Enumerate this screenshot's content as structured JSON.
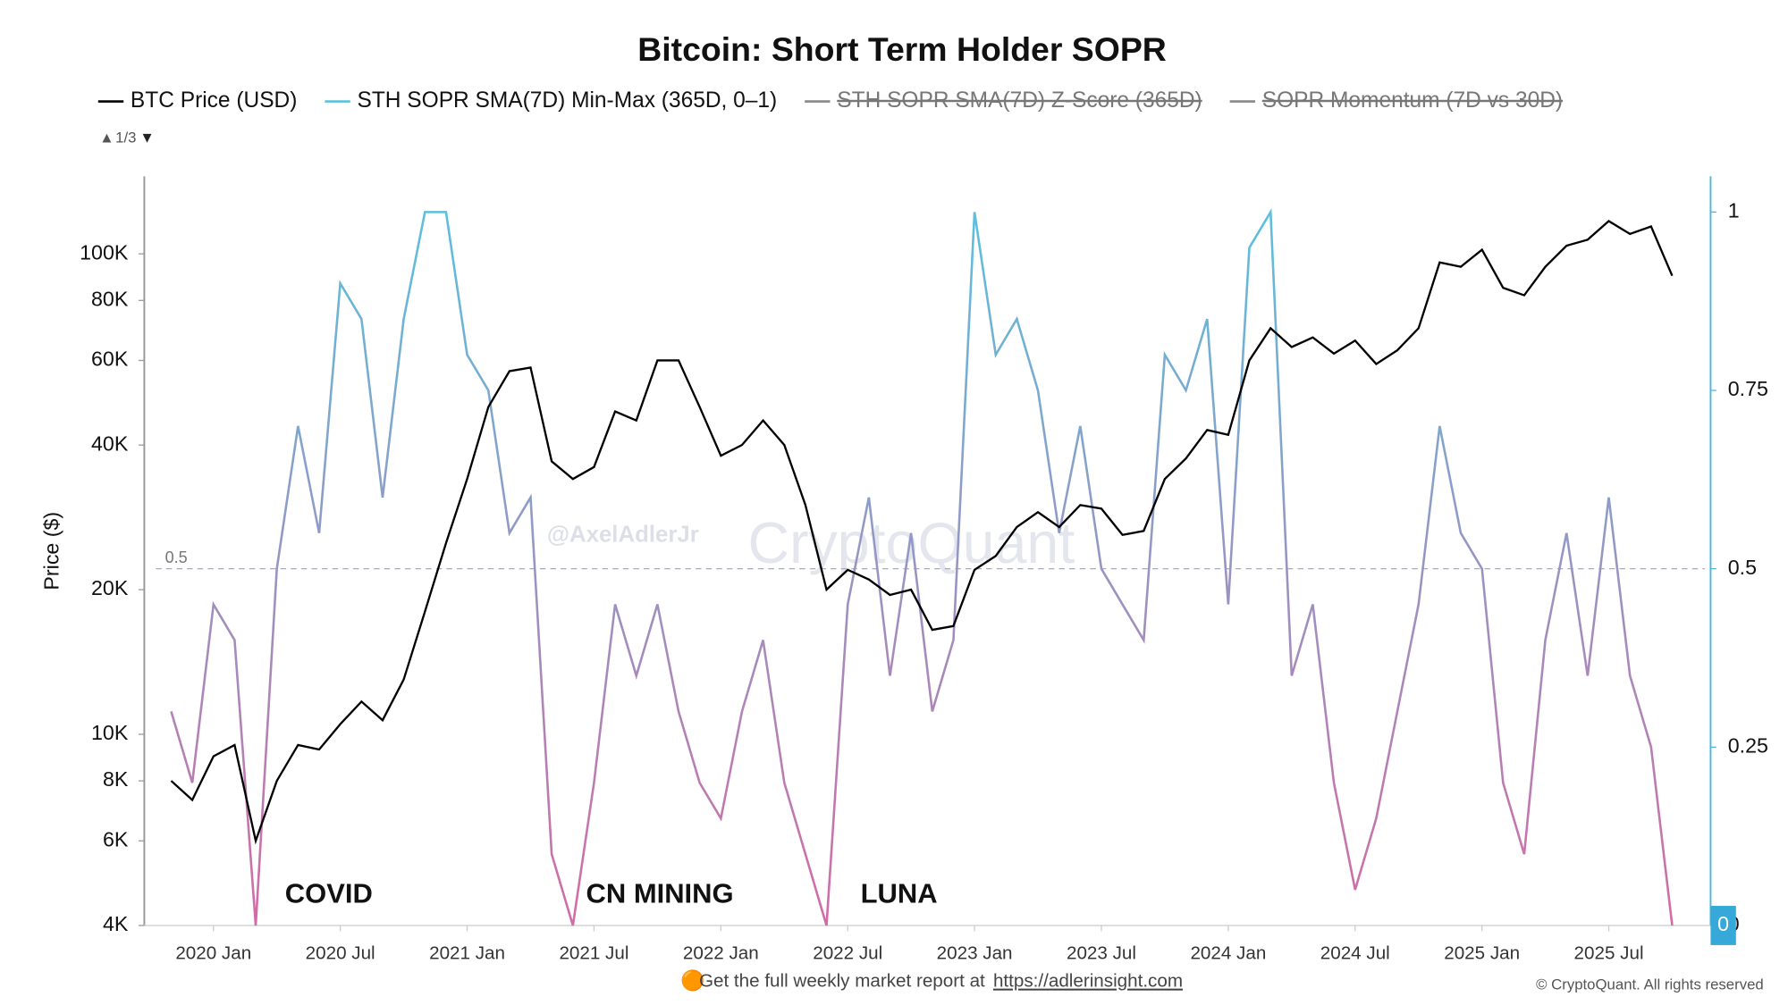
{
  "chart_data": {
    "type": "line",
    "title": "Bitcoin: Short Term Holder SOPR",
    "legend_page": "1/3",
    "ylabel": "Price ($)",
    "log_y": true,
    "ylim": [
      4000,
      145000
    ],
    "yticks": [
      {
        "value": 4000,
        "label": "4K"
      },
      {
        "value": 6000,
        "label": "6K"
      },
      {
        "value": 8000,
        "label": "8K"
      },
      {
        "value": 10000,
        "label": "10K"
      },
      {
        "value": 20000,
        "label": "20K"
      },
      {
        "value": 40000,
        "label": "40K"
      },
      {
        "value": 60000,
        "label": "60K"
      },
      {
        "value": 80000,
        "label": "80K"
      },
      {
        "value": 100000,
        "label": "100K"
      }
    ],
    "y2lim": [
      0,
      1.05
    ],
    "y2ticks": [
      0,
      0.25,
      0.5,
      0.75,
      1
    ],
    "reference_line": 0.5,
    "x": [
      null,
      null,
      "2020 Jan",
      null,
      null,
      null,
      null,
      null,
      "2020 Jul",
      null,
      null,
      null,
      null,
      null,
      "2021 Jan",
      null,
      null,
      null,
      null,
      null,
      "2021 Jul",
      null,
      null,
      null,
      null,
      null,
      "2022 Jan",
      null,
      null,
      null,
      null,
      null,
      "2022 Jul",
      null,
      null,
      null,
      null,
      null,
      "2023 Jan",
      null,
      null,
      null,
      null,
      null,
      "2023 Jul",
      null,
      null,
      null,
      null,
      null,
      "2024 Jan",
      null,
      null,
      null,
      null,
      null,
      "2024 Jul",
      null,
      null,
      null,
      null,
      null,
      "2025 Jan",
      null,
      null,
      null,
      null,
      null,
      "2025 Jul",
      null,
      null,
      null
    ],
    "series": [
      {
        "name": "BTC Price (USD)",
        "color": "#000000",
        "axis": "y",
        "values": [
          8000,
          7300,
          9000,
          9500,
          6000,
          8000,
          9500,
          9300,
          10500,
          11700,
          10700,
          13000,
          18000,
          25000,
          34000,
          48000,
          57000,
          58000,
          37000,
          34000,
          36000,
          47000,
          45000,
          60000,
          60000,
          48000,
          38000,
          40000,
          45000,
          40000,
          30000,
          20000,
          22000,
          21000,
          19500,
          20000,
          16500,
          16800,
          22000,
          23500,
          27000,
          29000,
          27000,
          30000,
          29500,
          26000,
          26500,
          34000,
          37500,
          43000,
          42000,
          60000,
          70000,
          64000,
          67000,
          62000,
          66000,
          59000,
          63000,
          70000,
          96000,
          94000,
          102000,
          85000,
          82000,
          94000,
          104000,
          107000,
          117000,
          110000,
          114000,
          90000
        ]
      },
      {
        "name": "STH SOPR SMA(7D) Min-Max (365D, 0–1)",
        "color": "#5bc0de",
        "color_low": "#d46aa6",
        "axis": "y2",
        "values": [
          0.3,
          0.2,
          0.45,
          0.4,
          0.0,
          0.5,
          0.7,
          0.55,
          0.9,
          0.85,
          0.6,
          0.85,
          1.0,
          1.0,
          0.8,
          0.75,
          0.55,
          0.6,
          0.1,
          0.0,
          0.2,
          0.45,
          0.35,
          0.45,
          0.3,
          0.2,
          0.15,
          0.3,
          0.4,
          0.2,
          0.1,
          0.0,
          0.45,
          0.6,
          0.35,
          0.55,
          0.3,
          0.4,
          1.0,
          0.8,
          0.85,
          0.75,
          0.55,
          0.7,
          0.5,
          0.45,
          0.4,
          0.8,
          0.75,
          0.85,
          0.45,
          0.95,
          1.0,
          0.35,
          0.45,
          0.2,
          0.05,
          0.15,
          0.3,
          0.45,
          0.7,
          0.55,
          0.5,
          0.2,
          0.1,
          0.4,
          0.55,
          0.35,
          0.6,
          0.35,
          0.25,
          0.0
        ]
      },
      {
        "name": "STH SOPR SMA(7D) Z-Score (365D)",
        "color": "#888888",
        "visible": false
      },
      {
        "name": "SOPR Momentum (7D vs 30D)",
        "color": "#888888",
        "visible": false
      }
    ],
    "annotations": [
      "COVID",
      "CN MINING",
      "LUNA"
    ],
    "watermarks": [
      "@AxelAdlerJr",
      "CryptoQuant"
    ],
    "footer": {
      "text": "Get the full weekly market report at",
      "link": "https://adlerinsight.com",
      "copyright": "© CryptoQuant. All rights reserved"
    }
  }
}
